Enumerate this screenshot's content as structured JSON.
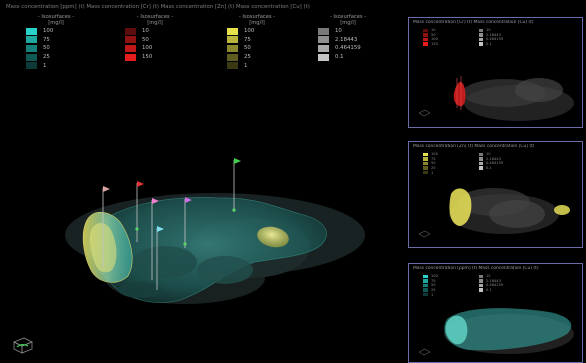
{
  "main": {
    "title": "Mass concentration [ppm] (t) Mass concentration [Cr] (t) Mass concentration [Zn] (t) Mass concentration [Cu] (t)",
    "legends": [
      {
        "header": "- Isosurfaces -",
        "unit": "[mg/l]",
        "rows": [
          {
            "value": "100",
            "color": "#29d3c9"
          },
          {
            "value": "75",
            "color": "#1fa8a0"
          },
          {
            "value": "50",
            "color": "#16807a"
          },
          {
            "value": "25",
            "color": "#0f5955"
          },
          {
            "value": "1",
            "color": "#0b3a38"
          }
        ]
      },
      {
        "header": "- Isosurfaces -",
        "unit": "[mg/l]",
        "rows": [
          {
            "value": "10",
            "color": "#5c0d0d"
          },
          {
            "value": "50",
            "color": "#8f1212"
          },
          {
            "value": "100",
            "color": "#c01818"
          },
          {
            "value": "150",
            "color": "#e41c1c"
          }
        ]
      },
      {
        "header": "- Isosurfaces -",
        "unit": "[mg/l]",
        "rows": [
          {
            "value": "100",
            "color": "#e6e04c"
          },
          {
            "value": "75",
            "color": "#b9b43c"
          },
          {
            "value": "50",
            "color": "#8b872d"
          },
          {
            "value": "25",
            "color": "#5f5c1f"
          },
          {
            "value": "1",
            "color": "#3a3813"
          }
        ]
      },
      {
        "header": "- Isosurfaces -",
        "unit": "[mg/l]",
        "rows": [
          {
            "value": "10",
            "color": "#7a7a7a"
          },
          {
            "value": "2.18443",
            "color": "#8f8f8f"
          },
          {
            "value": "0.464159",
            "color": "#a8a8a8"
          },
          {
            "value": "0.1",
            "color": "#c4c4c4"
          }
        ]
      }
    ]
  },
  "thumbs": [
    {
      "title": "Mass concentration [Cr] (t) Mass concentration [Cu] (t)",
      "legend_rows": [
        {
          "value": "10",
          "color": "#5c0d0d"
        },
        {
          "value": "50",
          "color": "#8f1212"
        },
        {
          "value": "100",
          "color": "#c01818"
        },
        {
          "value": "150",
          "color": "#e41c1c"
        }
      ],
      "legend2_rows": [
        {
          "value": "10",
          "color": "#7a7a7a"
        },
        {
          "value": "2.18443",
          "color": "#8f8f8f"
        },
        {
          "value": "0.464159",
          "color": "#a8a8a8"
        },
        {
          "value": "0.1",
          "color": "#c4c4c4"
        }
      ],
      "footer_left": "",
      "footer_right": "",
      "plume_color": "#e02020"
    },
    {
      "title": "Mass concentration [Zn] (t) Mass concentration [Cu] (t)",
      "legend_rows": [
        {
          "value": "100",
          "color": "#e6e04c"
        },
        {
          "value": "75",
          "color": "#b9b43c"
        },
        {
          "value": "50",
          "color": "#8b872d"
        },
        {
          "value": "25",
          "color": "#5f5c1f"
        },
        {
          "value": "1",
          "color": "#3a3813"
        }
      ],
      "legend2_rows": [
        {
          "value": "10",
          "color": "#7a7a7a"
        },
        {
          "value": "2.18443",
          "color": "#8f8f8f"
        },
        {
          "value": "0.464159",
          "color": "#a8a8a8"
        },
        {
          "value": "0.1",
          "color": "#c4c4c4"
        }
      ],
      "footer_left": "",
      "footer_right": "",
      "plume_color": "#e6e04c"
    },
    {
      "title": "Mass concentration [ppm] (t) Mass concentration [Cu] (t)",
      "legend_rows": [
        {
          "value": "100",
          "color": "#29d3c9"
        },
        {
          "value": "75",
          "color": "#1fa8a0"
        },
        {
          "value": "50",
          "color": "#16807a"
        },
        {
          "value": "25",
          "color": "#0f5955"
        },
        {
          "value": "1",
          "color": "#0b3a38"
        }
      ],
      "legend2_rows": [
        {
          "value": "10",
          "color": "#7a7a7a"
        },
        {
          "value": "2.18443",
          "color": "#8f8f8f"
        },
        {
          "value": "0.464159",
          "color": "#a8a8a8"
        },
        {
          "value": "0.1",
          "color": "#c4c4c4"
        }
      ],
      "footer_left": "",
      "footer_right": "",
      "plume_color": "#29d3c9"
    }
  ],
  "icons": {
    "orientation": "orientation-cube-icon"
  },
  "colors": {
    "frame_border": "#6b6ba8",
    "background": "#000000"
  }
}
